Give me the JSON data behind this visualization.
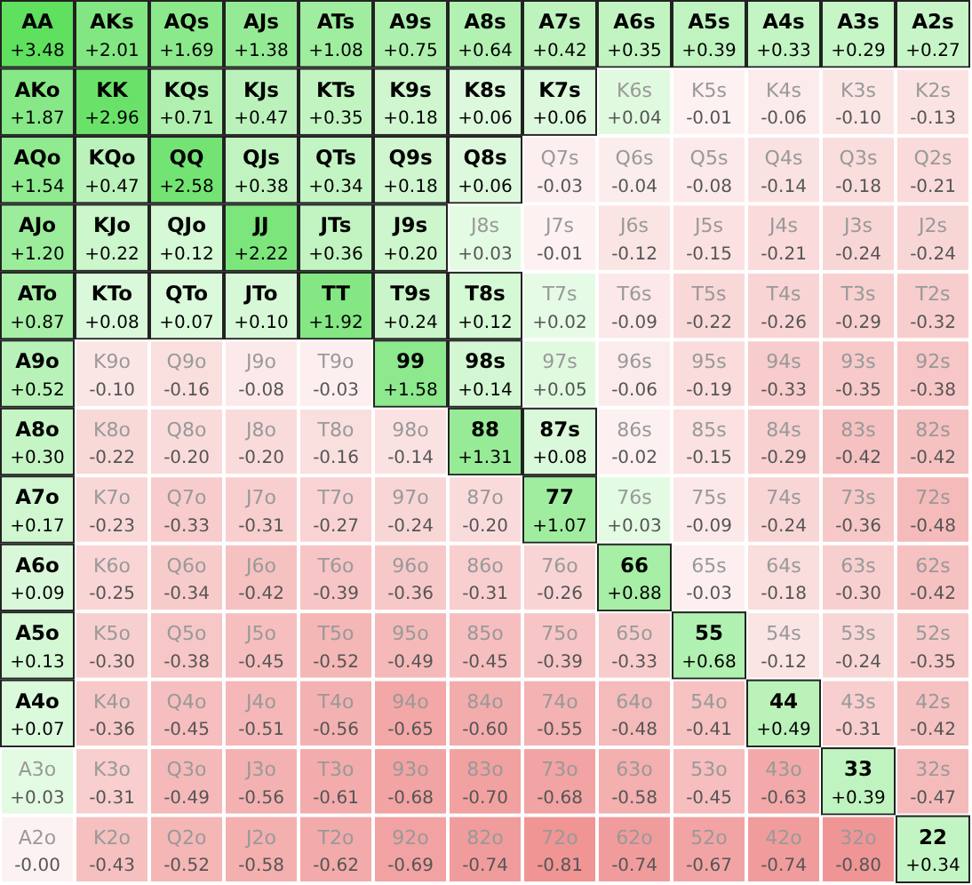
{
  "chart_data": {
    "type": "heatmap",
    "categories": [
      null,
      null,
      null,
      null,
      null,
      null,
      null,
      null,
      null,
      null,
      null,
      null,
      null
    ],
    "y_categories": [
      null,
      null,
      null,
      null,
      null,
      null,
      null,
      null,
      null,
      null,
      null,
      null,
      null
    ],
    "cells": [
      [
        3.48,
        2.01,
        1.69,
        1.38,
        1.08,
        0.75,
        0.64,
        0.42,
        0.35,
        0.39,
        0.33,
        0.29,
        0.27
      ],
      [
        1.87,
        2.96,
        0.71,
        0.47,
        0.35,
        0.18,
        0.06,
        0.06,
        0.04,
        -0.01,
        -0.06,
        -0.1,
        -0.13
      ],
      [
        1.54,
        0.47,
        2.58,
        0.38,
        0.34,
        0.18,
        0.06,
        -0.03,
        -0.04,
        -0.08,
        -0.14,
        -0.18,
        -0.21
      ],
      [
        1.2,
        0.22,
        0.12,
        2.22,
        0.36,
        0.2,
        0.03,
        -0.01,
        -0.12,
        -0.15,
        -0.21,
        -0.24,
        -0.24
      ],
      [
        0.87,
        0.08,
        0.07,
        0.1,
        1.92,
        0.24,
        0.12,
        0.02,
        -0.09,
        -0.22,
        -0.26,
        -0.29,
        -0.32
      ],
      [
        0.52,
        -0.1,
        -0.16,
        -0.08,
        -0.03,
        1.58,
        0.14,
        0.05,
        -0.06,
        -0.19,
        -0.33,
        -0.35,
        -0.38
      ],
      [
        0.3,
        -0.22,
        -0.2,
        -0.2,
        -0.16,
        -0.14,
        1.31,
        0.08,
        -0.02,
        -0.15,
        -0.29,
        -0.42,
        -0.42
      ],
      [
        0.17,
        -0.23,
        -0.33,
        -0.31,
        -0.27,
        -0.24,
        -0.2,
        1.07,
        0.03,
        -0.09,
        -0.24,
        -0.36,
        -0.48
      ],
      [
        0.09,
        -0.25,
        -0.34,
        -0.42,
        -0.39,
        -0.36,
        -0.31,
        -0.26,
        0.88,
        -0.03,
        -0.18,
        -0.3,
        -0.42
      ],
      [
        0.13,
        -0.3,
        -0.38,
        -0.45,
        -0.52,
        -0.49,
        -0.45,
        -0.39,
        -0.33,
        0.68,
        -0.12,
        -0.24,
        -0.35
      ],
      [
        0.07,
        -0.36,
        -0.45,
        -0.51,
        -0.56,
        -0.65,
        -0.6,
        -0.55,
        -0.48,
        -0.41,
        0.49,
        -0.31,
        -0.42
      ],
      [
        0.03,
        -0.31,
        -0.49,
        -0.56,
        -0.61,
        -0.68,
        -0.7,
        -0.68,
        -0.58,
        -0.45,
        -0.63,
        0.39,
        -0.47
      ],
      [
        -0.0,
        -0.43,
        -0.52,
        -0.58,
        -0.62,
        -0.69,
        -0.74,
        -0.81,
        -0.74,
        -0.67,
        -0.74,
        -0.8,
        0.34
      ]
    ],
    "cell_labels": [
      [
        "+3.48",
        "+2.01",
        "+1.69",
        "+1.38",
        "+1.08",
        "+0.75",
        "+0.64",
        "+0.42",
        "+0.35",
        "+0.39",
        "+0.33",
        "+0.29",
        "+0.27"
      ],
      [
        "+1.87",
        "+2.96",
        "+0.71",
        "+0.47",
        "+0.35",
        "+0.18",
        "+0.06",
        "+0.06",
        "+0.04",
        "-0.01",
        "-0.06",
        "-0.10",
        "-0.13"
      ],
      [
        "+1.54",
        "+0.47",
        "+2.58",
        "+0.38",
        "+0.34",
        "+0.18",
        "+0.06",
        "-0.03",
        "-0.04",
        "-0.08",
        "-0.14",
        "-0.18",
        "-0.21"
      ],
      [
        "+1.20",
        "+0.22",
        "+0.12",
        "+2.22",
        "+0.36",
        "+0.20",
        "+0.03",
        "-0.01",
        "-0.12",
        "-0.15",
        "-0.21",
        "-0.24",
        "-0.24"
      ],
      [
        "+0.87",
        "+0.08",
        "+0.07",
        "+0.10",
        "+1.92",
        "+0.24",
        "+0.12",
        "+0.02",
        "-0.09",
        "-0.22",
        "-0.26",
        "-0.29",
        "-0.32"
      ],
      [
        "+0.52",
        "-0.10",
        "-0.16",
        "-0.08",
        "-0.03",
        "+1.58",
        "+0.14",
        "+0.05",
        "-0.06",
        "-0.19",
        "-0.33",
        "-0.35",
        "-0.38"
      ],
      [
        "+0.30",
        "-0.22",
        "-0.20",
        "-0.20",
        "-0.16",
        "-0.14",
        "+1.31",
        "+0.08",
        "-0.02",
        "-0.15",
        "-0.29",
        "-0.42",
        "-0.42"
      ],
      [
        "+0.17",
        "-0.23",
        "-0.33",
        "-0.31",
        "-0.27",
        "-0.24",
        "-0.20",
        "+1.07",
        "+0.03",
        "-0.09",
        "-0.24",
        "-0.36",
        "-0.48"
      ],
      [
        "+0.09",
        "-0.25",
        "-0.34",
        "-0.42",
        "-0.39",
        "-0.36",
        "-0.31",
        "-0.26",
        "+0.88",
        "-0.03",
        "-0.18",
        "-0.30",
        "-0.42"
      ],
      [
        "+0.13",
        "-0.30",
        "-0.38",
        "-0.45",
        "-0.52",
        "-0.49",
        "-0.45",
        "-0.39",
        "-0.33",
        "+0.68",
        "-0.12",
        "-0.24",
        "-0.35"
      ],
      [
        "+0.07",
        "-0.36",
        "-0.45",
        "-0.51",
        "-0.56",
        "-0.65",
        "-0.60",
        "-0.55",
        "-0.48",
        "-0.41",
        "+0.49",
        "-0.31",
        "-0.42"
      ],
      [
        "+0.03",
        "-0.31",
        "-0.49",
        "-0.56",
        "-0.61",
        "-0.68",
        "-0.70",
        "-0.68",
        "-0.58",
        "-0.45",
        "-0.63",
        "+0.39",
        "-0.47"
      ],
      [
        "-0.00",
        "-0.43",
        "-0.52",
        "-0.58",
        "-0.62",
        "-0.69",
        "-0.74",
        "-0.81",
        "-0.74",
        "-0.67",
        "-0.74",
        "-0.80",
        "+0.34"
      ]
    ],
    "annotations": [
      "AA",
      "AKs",
      "AQs",
      "AJs",
      "ATs",
      "A9s",
      "A8s",
      "A7s",
      "A6s",
      "A5s",
      "A4s",
      "A3s",
      "A2s",
      "AKo",
      "KK",
      "KQs",
      "KJs",
      "KTs",
      "K9s",
      "K8s",
      "K7s",
      "K6s",
      "K5s",
      "K4s",
      "K3s",
      "K2s",
      "AQo",
      "KQo",
      "QQ",
      "QJs",
      "QTs",
      "Q9s",
      "Q8s",
      "Q7s",
      "Q6s",
      "Q5s",
      "Q4s",
      "Q3s",
      "Q2s",
      "AJo",
      "KJo",
      "QJo",
      "JJ",
      "JTs",
      "J9s",
      "J8s",
      "J7s",
      "J6s",
      "J5s",
      "J4s",
      "J3s",
      "J2s",
      "ATo",
      "KTo",
      "QTo",
      "JTo",
      "TT",
      "T9s",
      "T8s",
      "T7s",
      "T6s",
      "T5s",
      "T4s",
      "T3s",
      "T2s",
      "A9o",
      "K9o",
      "Q9o",
      "J9o",
      "T9o",
      "99",
      "98s",
      "97s",
      "96s",
      "95s",
      "94s",
      "93s",
      "92s",
      "A8o",
      "K8o",
      "Q8o",
      "J8o",
      "T8o",
      "98o",
      "88",
      "87s",
      "86s",
      "85s",
      "84s",
      "83s",
      "82s",
      "A7o",
      "K7o",
      "Q7o",
      "J7o",
      "T7o",
      "97o",
      "87o",
      "77",
      "76s",
      "75s",
      "74s",
      "73s",
      "72s",
      "A6o",
      "K6o",
      "Q6o",
      "J6o",
      "T6o",
      "96o",
      "86o",
      "76o",
      "66",
      "65s",
      "64s",
      "63s",
      "62s",
      "A5o",
      "K5o",
      "Q5o",
      "J5o",
      "T5o",
      "95o",
      "85o",
      "75o",
      "65o",
      "55",
      "54s",
      "53s",
      "52s",
      "A4o",
      "K4o",
      "Q4o",
      "J4o",
      "T4o",
      "94o",
      "84o",
      "74o",
      "64o",
      "54o",
      "44",
      "43s",
      "42s",
      "A3o",
      "K3o",
      "Q3o",
      "J3o",
      "T3o",
      "93o",
      "83o",
      "73o",
      "63o",
      "53o",
      "43o",
      "33",
      "32s",
      "A2o",
      "K2o",
      "Q2o",
      "J2o",
      "T2o",
      "92o",
      "82o",
      "72o",
      "62o",
      "52o",
      "42o",
      "32o",
      "22"
    ]
  }
}
